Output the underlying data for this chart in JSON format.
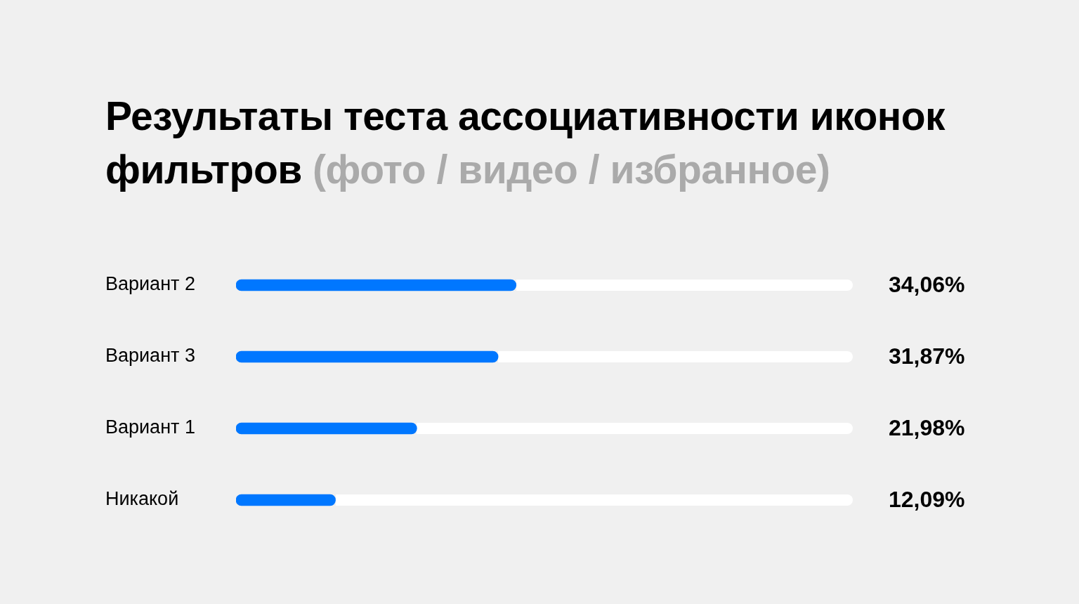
{
  "chart_data": {
    "type": "bar",
    "orientation": "horizontal",
    "title": "Результаты теста ассоциативности иконок фильтров (фото / видео / избранное)",
    "categories": [
      "Вариант 2",
      "Вариант 3",
      "Вариант 1",
      "Никакой"
    ],
    "values": [
      34.06,
      31.87,
      21.98,
      12.09
    ],
    "color": "#0077ff",
    "value_labels": [
      "34,06%",
      "31,87%",
      "21,98%",
      "12,09%"
    ],
    "xlim": [
      0,
      75
    ],
    "tick_labels": "y"
  }
}
